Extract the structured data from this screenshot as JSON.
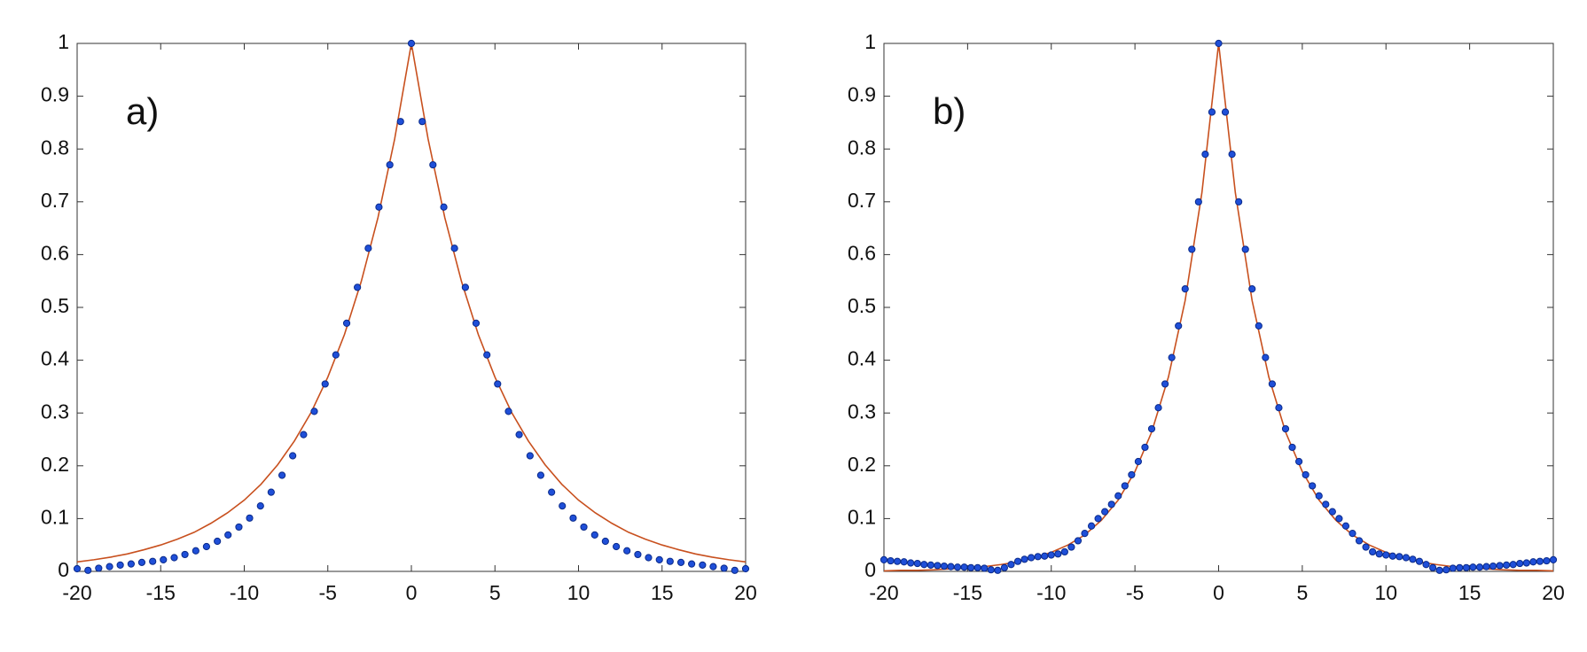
{
  "chart_data": [
    {
      "type": "scatter",
      "annotation": "a)",
      "xlim": [
        -20,
        20
      ],
      "ylim": [
        0,
        1
      ],
      "xticks": [
        -20,
        -15,
        -10,
        -5,
        0,
        5,
        10,
        15,
        20
      ],
      "yticks": [
        0,
        0.1,
        0.2,
        0.3,
        0.4,
        0.5,
        0.6,
        0.7,
        0.8,
        0.9,
        1
      ],
      "series": [
        {
          "type": "scatter",
          "color": "#1f4fd8",
          "x": [
            -20,
            -19.35,
            -18.71,
            -18.06,
            -17.42,
            -16.77,
            -16.13,
            -15.48,
            -14.84,
            -14.19,
            -13.55,
            -12.9,
            -12.26,
            -11.61,
            -10.97,
            -10.32,
            -9.68,
            -9.03,
            -8.39,
            -7.74,
            -7.1,
            -6.45,
            -5.81,
            -5.16,
            -4.52,
            -3.87,
            -3.23,
            -2.58,
            -1.94,
            -1.29,
            -0.65,
            0,
            0.65,
            1.29,
            1.94,
            2.58,
            3.23,
            3.87,
            4.52,
            5.16,
            5.81,
            6.45,
            7.1,
            7.74,
            8.39,
            9.03,
            9.68,
            10.32,
            10.97,
            11.61,
            12.26,
            12.9,
            13.55,
            14.19,
            14.84,
            15.48,
            16.13,
            16.77,
            17.42,
            18.06,
            18.71,
            19.35,
            20
          ],
          "values": [
            0.005,
            0.002,
            0.006,
            0.009,
            0.012,
            0.014,
            0.017,
            0.019,
            0.022,
            0.026,
            0.032,
            0.039,
            0.047,
            0.057,
            0.069,
            0.084,
            0.101,
            0.124,
            0.15,
            0.182,
            0.219,
            0.259,
            0.303,
            0.355,
            0.41,
            0.47,
            0.538,
            0.612,
            0.69,
            0.77,
            0.852,
            1.0,
            0.852,
            0.77,
            0.69,
            0.612,
            0.538,
            0.47,
            0.41,
            0.355,
            0.303,
            0.259,
            0.219,
            0.182,
            0.15,
            0.124,
            0.101,
            0.084,
            0.069,
            0.057,
            0.047,
            0.039,
            0.032,
            0.026,
            0.022,
            0.019,
            0.017,
            0.014,
            0.012,
            0.009,
            0.006,
            0.002,
            0.005
          ]
        },
        {
          "type": "line",
          "color": "#c8501e",
          "x": [
            -20,
            -19,
            -18,
            -17,
            -16,
            -15,
            -14,
            -13,
            -12,
            -11,
            -10,
            -9,
            -8,
            -7,
            -6,
            -5,
            -4,
            -3,
            -2,
            -1,
            0,
            1,
            2,
            3,
            4,
            5,
            6,
            7,
            8,
            9,
            10,
            11,
            12,
            13,
            14,
            15,
            16,
            17,
            18,
            19,
            20
          ],
          "values": [
            0.018,
            0.022,
            0.027,
            0.033,
            0.041,
            0.05,
            0.061,
            0.074,
            0.091,
            0.111,
            0.135,
            0.165,
            0.202,
            0.247,
            0.301,
            0.368,
            0.449,
            0.549,
            0.67,
            0.819,
            1.0,
            0.819,
            0.67,
            0.549,
            0.449,
            0.368,
            0.301,
            0.247,
            0.202,
            0.165,
            0.135,
            0.111,
            0.091,
            0.074,
            0.061,
            0.05,
            0.041,
            0.033,
            0.027,
            0.022,
            0.018
          ]
        }
      ]
    },
    {
      "type": "scatter",
      "annotation": "b)",
      "xlim": [
        -20,
        20
      ],
      "ylim": [
        0,
        1
      ],
      "xticks": [
        -20,
        -15,
        -10,
        -5,
        0,
        5,
        10,
        15,
        20
      ],
      "yticks": [
        0,
        0.1,
        0.2,
        0.3,
        0.4,
        0.5,
        0.6,
        0.7,
        0.8,
        0.9,
        1
      ],
      "series": [
        {
          "type": "scatter",
          "color": "#1f4fd8",
          "x": [
            -20,
            -19.6,
            -19.2,
            -18.8,
            -18.4,
            -18,
            -17.6,
            -17.2,
            -16.8,
            -16.4,
            -16,
            -15.6,
            -15.2,
            -14.8,
            -14.4,
            -14,
            -13.6,
            -13.2,
            -12.8,
            -12.4,
            -12,
            -11.6,
            -11.2,
            -10.8,
            -10.4,
            -10,
            -9.6,
            -9.2,
            -8.8,
            -8.4,
            -8,
            -7.6,
            -7.2,
            -6.8,
            -6.4,
            -6,
            -5.6,
            -5.2,
            -4.8,
            -4.4,
            -4,
            -3.6,
            -3.2,
            -2.8,
            -2.4,
            -2,
            -1.6,
            -1.2,
            -0.8,
            -0.4,
            0,
            0.4,
            0.8,
            1.2,
            1.6,
            2,
            2.4,
            2.8,
            3.2,
            3.6,
            4,
            4.4,
            4.8,
            5.2,
            5.6,
            6,
            6.4,
            6.8,
            7.2,
            7.6,
            8,
            8.4,
            8.8,
            9.2,
            9.6,
            10,
            10.4,
            10.8,
            11.2,
            11.6,
            12,
            12.4,
            12.8,
            13.2,
            13.6,
            14,
            14.4,
            14.8,
            15.2,
            15.6,
            16,
            16.4,
            16.8,
            17.2,
            17.6,
            18,
            18.4,
            18.8,
            19.2,
            19.6,
            20
          ],
          "values": [
            0.022,
            0.02,
            0.019,
            0.018,
            0.016,
            0.015,
            0.013,
            0.012,
            0.011,
            0.01,
            0.009,
            0.008,
            0.008,
            0.007,
            0.007,
            0.006,
            0.003,
            0.002,
            0.007,
            0.013,
            0.019,
            0.023,
            0.026,
            0.028,
            0.029,
            0.031,
            0.033,
            0.037,
            0.046,
            0.058,
            0.072,
            0.086,
            0.1,
            0.113,
            0.127,
            0.143,
            0.162,
            0.183,
            0.208,
            0.235,
            0.27,
            0.31,
            0.355,
            0.405,
            0.465,
            0.535,
            0.61,
            0.7,
            0.79,
            0.87,
            1.0,
            0.87,
            0.79,
            0.7,
            0.61,
            0.535,
            0.465,
            0.405,
            0.355,
            0.31,
            0.27,
            0.235,
            0.208,
            0.183,
            0.162,
            0.143,
            0.127,
            0.113,
            0.1,
            0.086,
            0.072,
            0.058,
            0.046,
            0.037,
            0.033,
            0.031,
            0.029,
            0.028,
            0.026,
            0.023,
            0.019,
            0.013,
            0.007,
            0.002,
            0.003,
            0.006,
            0.007,
            0.007,
            0.008,
            0.008,
            0.009,
            0.01,
            0.011,
            0.012,
            0.013,
            0.015,
            0.016,
            0.018,
            0.019,
            0.02,
            0.022
          ]
        },
        {
          "type": "line",
          "color": "#c8501e",
          "x": [
            -20,
            -19,
            -18,
            -17,
            -16,
            -15,
            -14,
            -13,
            -12,
            -11,
            -10,
            -9,
            -8,
            -7,
            -6,
            -5,
            -4,
            -3,
            -2,
            -1,
            0,
            1,
            2,
            3,
            4,
            5,
            6,
            7,
            8,
            9,
            10,
            11,
            12,
            13,
            14,
            15,
            16,
            17,
            18,
            19,
            20
          ],
          "values": [
            0.001,
            0.002,
            0.002,
            0.003,
            0.005,
            0.007,
            0.009,
            0.013,
            0.018,
            0.026,
            0.036,
            0.05,
            0.069,
            0.097,
            0.135,
            0.189,
            0.264,
            0.368,
            0.513,
            0.717,
            1.0,
            0.717,
            0.513,
            0.368,
            0.264,
            0.189,
            0.135,
            0.097,
            0.069,
            0.05,
            0.036,
            0.026,
            0.018,
            0.013,
            0.009,
            0.007,
            0.005,
            0.003,
            0.002,
            0.002,
            0.001
          ]
        }
      ]
    }
  ]
}
